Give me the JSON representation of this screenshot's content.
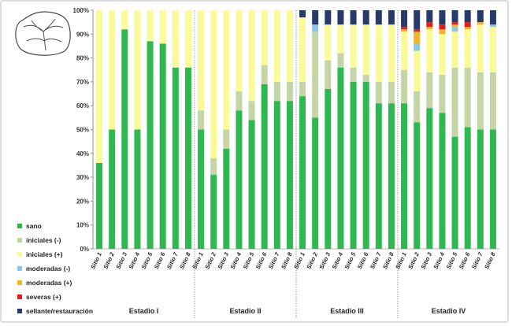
{
  "chart_data": {
    "type": "bar",
    "stacked": true,
    "title": "",
    "xlabel": "",
    "ylabel": "",
    "ylim": [
      0,
      100
    ],
    "yticks": [
      "0%",
      "10%",
      "20%",
      "30%",
      "40%",
      "50%",
      "60%",
      "70%",
      "80%",
      "90%",
      "100%"
    ],
    "grid": false,
    "legend_position": "left",
    "groups": [
      "Estadio I",
      "Estadio II",
      "Estadio III",
      "Estadio IV"
    ],
    "sites": [
      "Sitio 1",
      "Sitio 2",
      "Sitio 3",
      "Sitio 4",
      "Sitio 5",
      "Sitio 6",
      "Sitio 7",
      "Sitio 8"
    ],
    "series": [
      {
        "name": "sano",
        "color": "#2eb84f",
        "values": [
          [
            36,
            50,
            92,
            50,
            87,
            86,
            76,
            76
          ],
          [
            50,
            31,
            42,
            58,
            54,
            69,
            62,
            62
          ],
          [
            64,
            55,
            67,
            76,
            70,
            70,
            61,
            61
          ],
          [
            61,
            53,
            59,
            57,
            47,
            51,
            50,
            50
          ]
        ]
      },
      {
        "name": "iniciales (-)",
        "color": "#c5d5a7",
        "values": [
          [
            0,
            0,
            0,
            0,
            0,
            0,
            0,
            0
          ],
          [
            8,
            7,
            8,
            8,
            8,
            8,
            8,
            8
          ],
          [
            6,
            36,
            12,
            6,
            6,
            3,
            9,
            9
          ],
          [
            14,
            13,
            15,
            16,
            29,
            25,
            24,
            24
          ]
        ]
      },
      {
        "name": "iniciales (+)",
        "color": "#fafa96",
        "values": [
          [
            64,
            50,
            8,
            50,
            13,
            14,
            24,
            24
          ],
          [
            42,
            62,
            50,
            34,
            38,
            23,
            30,
            30
          ],
          [
            27,
            0,
            15,
            12,
            18,
            21,
            24,
            24
          ],
          [
            16,
            17,
            18,
            17,
            15,
            16,
            20,
            19
          ]
        ]
      },
      {
        "name": "moderadas (-)",
        "color": "#8ec8e0",
        "values": [
          [
            0,
            0,
            0,
            0,
            0,
            0,
            0,
            0
          ],
          [
            0,
            0,
            0,
            0,
            0,
            0,
            0,
            0
          ],
          [
            0,
            3,
            0,
            0,
            0,
            0,
            0,
            0
          ],
          [
            0,
            3,
            0,
            0,
            2,
            0,
            0,
            1
          ]
        ]
      },
      {
        "name": "moderadas (+)",
        "color": "#f2b42c",
        "values": [
          [
            0,
            0,
            0,
            0,
            0,
            0,
            0,
            0
          ],
          [
            0,
            0,
            0,
            0,
            0,
            0,
            0,
            0
          ],
          [
            0,
            0,
            0,
            0,
            0,
            0,
            0,
            0
          ],
          [
            1,
            5,
            1,
            2,
            1,
            1,
            1,
            0
          ]
        ]
      },
      {
        "name": "severas (+)",
        "color": "#e41c1c",
        "values": [
          [
            0,
            0,
            0,
            0,
            0,
            0,
            0,
            0
          ],
          [
            0,
            0,
            0,
            0,
            0,
            0,
            0,
            0
          ],
          [
            0,
            0,
            0,
            0,
            0,
            0,
            0,
            0
          ],
          [
            1,
            1,
            2,
            2,
            1,
            2,
            0,
            0
          ]
        ]
      },
      {
        "name": "sellante/restauración",
        "color": "#263b6a",
        "values": [
          [
            0,
            0,
            0,
            0,
            0,
            0,
            0,
            0
          ],
          [
            0,
            0,
            0,
            0,
            0,
            0,
            0,
            0
          ],
          [
            3,
            6,
            6,
            6,
            6,
            6,
            6,
            6
          ],
          [
            7,
            8,
            5,
            6,
            5,
            5,
            5,
            6
          ]
        ]
      }
    ]
  }
}
